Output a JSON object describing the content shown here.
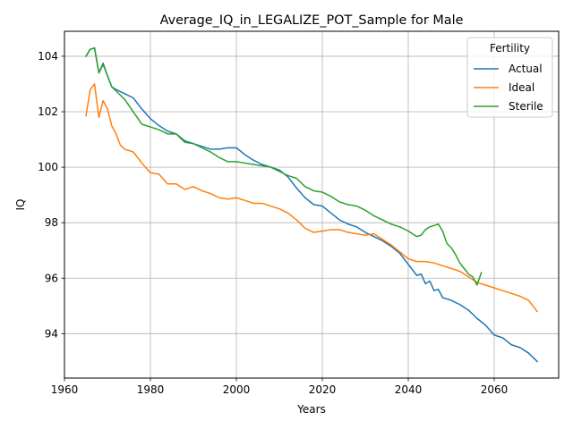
{
  "chart_data": {
    "type": "line",
    "title": "Average_IQ_in_LEGALIZE_POT_Sample for Male",
    "xlabel": "Years",
    "ylabel": "IQ",
    "xlim": [
      1960,
      2075
    ],
    "ylim": [
      92.4,
      104.9
    ],
    "xticks": [
      1960,
      1980,
      2000,
      2020,
      2040,
      2060
    ],
    "yticks": [
      94,
      96,
      98,
      100,
      102,
      104
    ],
    "grid": true,
    "legend": {
      "title": "Fertility",
      "placement": "top-right"
    },
    "series": [
      {
        "name": "Actual",
        "color": "#1f77b4",
        "x": [
          1965,
          1966,
          1967,
          1968,
          1969,
          1970,
          1971,
          1972,
          1974,
          1976,
          1978,
          1980,
          1982,
          1984,
          1986,
          1988,
          1990,
          1992,
          1994,
          1996,
          1998,
          2000,
          2002,
          2004,
          2006,
          2008,
          2010,
          2012,
          2014,
          2016,
          2018,
          2020,
          2022,
          2024,
          2026,
          2028,
          2030,
          2032,
          2034,
          2036,
          2038,
          2040,
          2042,
          2043,
          2044,
          2045,
          2046,
          2047,
          2048,
          2050,
          2052,
          2054,
          2056,
          2058,
          2060,
          2062,
          2064,
          2066,
          2068,
          2070
        ],
        "values": [
          104.0,
          104.25,
          104.3,
          103.4,
          103.75,
          103.3,
          102.9,
          102.8,
          102.65,
          102.5,
          102.1,
          101.75,
          101.5,
          101.3,
          101.2,
          100.95,
          100.85,
          100.75,
          100.65,
          100.65,
          100.7,
          100.7,
          100.45,
          100.25,
          100.1,
          100.0,
          99.9,
          99.65,
          99.25,
          98.9,
          98.65,
          98.6,
          98.35,
          98.1,
          97.95,
          97.85,
          97.65,
          97.5,
          97.35,
          97.15,
          96.9,
          96.5,
          96.1,
          96.15,
          95.8,
          95.9,
          95.55,
          95.6,
          95.3,
          95.2,
          95.05,
          94.85,
          94.55,
          94.3,
          93.95,
          93.85,
          93.6,
          93.5,
          93.3,
          93.0
        ]
      },
      {
        "name": "Ideal",
        "color": "#ff7f0e",
        "x": [
          1965,
          1966,
          1967,
          1968,
          1969,
          1970,
          1971,
          1972,
          1973,
          1974,
          1976,
          1978,
          1980,
          1982,
          1984,
          1986,
          1988,
          1990,
          1992,
          1994,
          1996,
          1998,
          2000,
          2002,
          2004,
          2006,
          2008,
          2010,
          2012,
          2014,
          2016,
          2018,
          2020,
          2022,
          2024,
          2026,
          2028,
          2030,
          2032,
          2034,
          2036,
          2038,
          2040,
          2042,
          2044,
          2046,
          2048,
          2050,
          2052,
          2054,
          2056,
          2058,
          2060,
          2062,
          2064,
          2066,
          2068,
          2070
        ],
        "values": [
          101.85,
          102.8,
          103.0,
          101.8,
          102.4,
          102.1,
          101.5,
          101.2,
          100.8,
          100.65,
          100.55,
          100.15,
          99.8,
          99.75,
          99.4,
          99.4,
          99.2,
          99.3,
          99.15,
          99.05,
          98.9,
          98.85,
          98.9,
          98.8,
          98.7,
          98.7,
          98.6,
          98.5,
          98.35,
          98.1,
          97.8,
          97.65,
          97.7,
          97.75,
          97.75,
          97.65,
          97.6,
          97.55,
          97.6,
          97.4,
          97.2,
          96.95,
          96.7,
          96.6,
          96.6,
          96.55,
          96.45,
          96.35,
          96.25,
          96.05,
          95.85,
          95.75,
          95.65,
          95.55,
          95.45,
          95.35,
          95.2,
          94.8
        ]
      },
      {
        "name": "Sterile",
        "color": "#2ca02c",
        "x": [
          1965,
          1966,
          1967,
          1968,
          1969,
          1970,
          1971,
          1972,
          1974,
          1976,
          1978,
          1980,
          1982,
          1984,
          1986,
          1988,
          1990,
          1992,
          1994,
          1996,
          1998,
          2000,
          2002,
          2004,
          2006,
          2008,
          2010,
          2012,
          2014,
          2016,
          2018,
          2020,
          2022,
          2024,
          2026,
          2028,
          2030,
          2032,
          2034,
          2036,
          2038,
          2040,
          2042,
          2043,
          2044,
          2045,
          2046,
          2047,
          2048,
          2049,
          2050,
          2051,
          2052,
          2053,
          2054,
          2055,
          2056,
          2057
        ],
        "values": [
          104.0,
          104.25,
          104.3,
          103.4,
          103.7,
          103.3,
          102.9,
          102.75,
          102.45,
          102.0,
          101.55,
          101.45,
          101.35,
          101.2,
          101.2,
          100.9,
          100.85,
          100.7,
          100.55,
          100.35,
          100.2,
          100.2,
          100.15,
          100.1,
          100.05,
          100.0,
          99.85,
          99.7,
          99.6,
          99.3,
          99.15,
          99.1,
          98.95,
          98.75,
          98.65,
          98.6,
          98.45,
          98.25,
          98.1,
          97.95,
          97.85,
          97.7,
          97.5,
          97.55,
          97.75,
          97.85,
          97.9,
          97.95,
          97.7,
          97.25,
          97.1,
          96.85,
          96.55,
          96.35,
          96.15,
          96.05,
          95.75,
          96.2
        ]
      }
    ]
  }
}
